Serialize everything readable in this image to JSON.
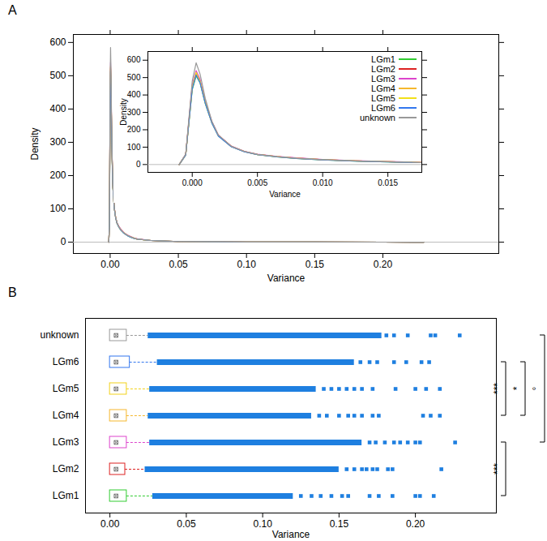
{
  "chart_data": [
    {
      "type": "line",
      "title": "A",
      "xlabel": "Variance",
      "ylabel": "Density",
      "x": [
        -0.001,
        -0.0005,
        0,
        0.0003,
        0.0006,
        0.001,
        0.0015,
        0.002,
        0.003,
        0.004,
        0.005,
        0.0065,
        0.008,
        0.01,
        0.0125,
        0.015,
        0.0175,
        0.02,
        0.03,
        0.05,
        0.1,
        0.15,
        0.2,
        0.23
      ],
      "series": [
        {
          "name": "LGm1",
          "color": "#33cc33",
          "values": [
            0,
            55,
            430,
            510,
            470,
            350,
            240,
            165,
            103,
            74,
            57,
            44,
            35,
            27,
            20,
            15,
            11,
            9,
            5,
            2,
            0.5,
            0.2,
            0.1,
            0
          ]
        },
        {
          "name": "LGm2",
          "color": "#dd2222",
          "values": [
            0,
            57,
            450,
            525,
            480,
            360,
            245,
            168,
            104,
            75,
            58,
            46,
            37,
            28,
            21,
            16,
            12,
            9,
            5,
            2,
            0.5,
            0.2,
            0.1,
            0
          ]
        },
        {
          "name": "LGm3",
          "color": "#dd44cc",
          "values": [
            0,
            58,
            460,
            540,
            490,
            365,
            248,
            170,
            106,
            76,
            59,
            47,
            38,
            29,
            22,
            17,
            13,
            10,
            5,
            2,
            0.6,
            0.2,
            0.1,
            0
          ]
        },
        {
          "name": "LGm4",
          "color": "#f5b82e",
          "values": [
            0,
            56,
            440,
            520,
            475,
            355,
            242,
            166,
            103,
            74,
            57,
            45,
            36,
            28,
            21,
            16,
            12,
            9,
            5,
            2,
            0.5,
            0.2,
            0.1,
            0
          ]
        },
        {
          "name": "LGm5",
          "color": "#f2e01a",
          "values": [
            0,
            56,
            445,
            530,
            478,
            358,
            244,
            167,
            104,
            75,
            58,
            45,
            36,
            28,
            21,
            16,
            12,
            9,
            5,
            2,
            0.5,
            0.2,
            0.1,
            0
          ]
        },
        {
          "name": "LGm6",
          "color": "#3377ee",
          "values": [
            0,
            55,
            435,
            515,
            470,
            352,
            240,
            164,
            102,
            73,
            57,
            44,
            35,
            27,
            20,
            15,
            11,
            9,
            5,
            2,
            0.5,
            0.2,
            0.1,
            0
          ]
        },
        {
          "name": "unknown",
          "color": "#999999",
          "values": [
            0,
            60,
            480,
            585,
            520,
            380,
            250,
            170,
            105,
            75,
            58,
            45,
            36,
            28,
            21,
            16,
            12,
            9,
            5,
            2,
            0.5,
            0.2,
            0.1,
            0
          ]
        }
      ],
      "xlim": [
        -0.027,
        0.285
      ],
      "xticks": [
        {
          "value": 0,
          "label": "0.00"
        },
        0.05,
        {
          "value": 0.1,
          "label": "0.10"
        },
        0.15,
        {
          "value": 0.2,
          "label": "0.20"
        }
      ],
      "ylim": [
        -34,
        624
      ],
      "yticks": [
        0,
        100,
        200,
        300,
        400,
        500,
        600
      ],
      "inset": {
        "xlabel": "Variance",
        "ylabel": "Density",
        "xlim": [
          -0.0034,
          0.0176
        ],
        "xticks": [
          {
            "value": 0,
            "label": "0.000"
          },
          0.005,
          {
            "value": 0.01,
            "label": "0.010"
          },
          0.015
        ],
        "ylim": [
          -45,
          650
        ],
        "yticks": [
          0,
          100,
          200,
          300,
          400,
          500,
          600
        ],
        "legend": "top-right"
      }
    },
    {
      "type": "box",
      "title": "B",
      "orientation": "horizontal",
      "xlabel": "Variance",
      "categories": [
        "unknown",
        "LGm6",
        "LGm5",
        "LGm4",
        "LGm3",
        "LGm2",
        "LGm1"
      ],
      "colors": [
        "#999999",
        "#3377ee",
        "#f2d21a",
        "#f5b82e",
        "#dd44cc",
        "#dd2222",
        "#33cc33"
      ],
      "color": "#1e7fe0",
      "boxes": [
        {
          "q1": 0,
          "median": 0.004,
          "q3": 0.011,
          "whisker_high": 0.025,
          "outlier_band": [
            0.025,
            0.178
          ],
          "outliers": [
            0.181,
            0.186,
            0.195,
            0.21,
            0.213,
            0.229
          ]
        },
        {
          "q1": 0,
          "median": 0.004,
          "q3": 0.013,
          "whisker_high": 0.031,
          "outlier_band": [
            0.031,
            0.16
          ],
          "outliers": [
            0.164,
            0.17,
            0.175,
            0.186,
            0.194,
            0.204,
            0.209
          ]
        },
        {
          "q1": 0,
          "median": 0.004,
          "q3": 0.011,
          "whisker_high": 0.026,
          "outlier_band": [
            0.026,
            0.135
          ],
          "outliers": [
            0.14,
            0.145,
            0.15,
            0.155,
            0.16,
            0.165,
            0.172,
            0.187,
            0.2,
            0.207,
            0.216
          ]
        },
        {
          "q1": 0,
          "median": 0.004,
          "q3": 0.011,
          "whisker_high": 0.025,
          "outlier_band": [
            0.025,
            0.132
          ],
          "outliers": [
            0.137,
            0.142,
            0.15,
            0.156,
            0.16,
            0.165,
            0.172,
            0.176,
            0.205,
            0.21,
            0.216
          ]
        },
        {
          "q1": 0,
          "median": 0.004,
          "q3": 0.011,
          "whisker_high": 0.026,
          "outlier_band": [
            0.026,
            0.165
          ],
          "outliers": [
            0.17,
            0.174,
            0.18,
            0.186,
            0.19,
            0.195,
            0.2,
            0.203,
            0.226
          ]
        },
        {
          "q1": 0,
          "median": 0.004,
          "q3": 0.01,
          "whisker_high": 0.023,
          "outlier_band": [
            0.023,
            0.15
          ],
          "outliers": [
            0.155,
            0.16,
            0.165,
            0.168,
            0.172,
            0.175,
            0.182,
            0.185,
            0.217
          ]
        },
        {
          "q1": 0,
          "median": 0.004,
          "q3": 0.011,
          "whisker_high": 0.028,
          "outlier_band": [
            0.028,
            0.12
          ],
          "outliers": [
            0.125,
            0.132,
            0.138,
            0.145,
            0.152,
            0.156,
            0.17,
            0.176,
            0.185,
            0.2,
            0.203,
            0.212
          ]
        }
      ],
      "xlim": [
        -0.016,
        0.253
      ],
      "xticks": [
        {
          "value": 0,
          "label": "0.00"
        },
        0.05,
        {
          "value": 0.1,
          "label": "0.10"
        },
        0.15,
        {
          "value": 0.2,
          "label": "0.20"
        }
      ],
      "annotations": [
        {
          "from": "LGm3",
          "to": "LGm1",
          "text": "***"
        },
        {
          "from": "LGm6",
          "to": "LGm4",
          "text": "***"
        },
        {
          "from": "LGm6",
          "to": "LGm4",
          "text": "*"
        },
        {
          "from": "unknown",
          "to": "LGm3",
          "text": "°"
        }
      ]
    }
  ]
}
